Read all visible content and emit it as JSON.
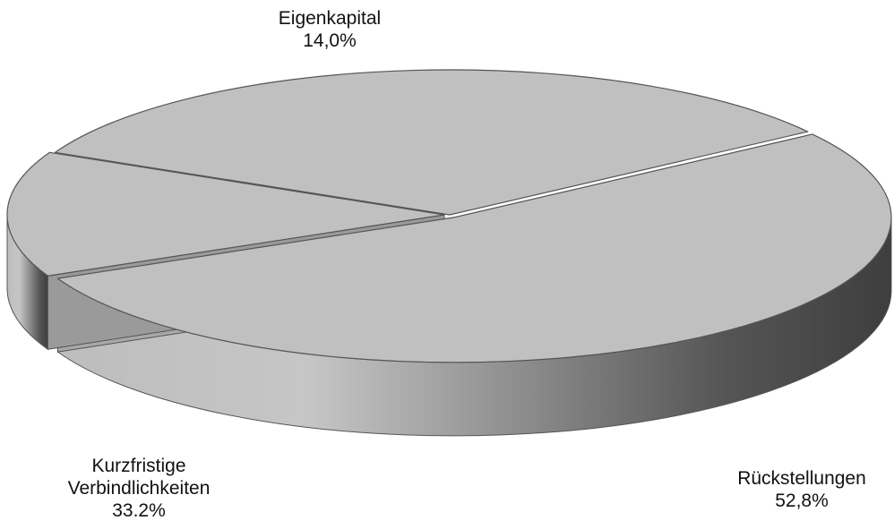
{
  "chart_data": {
    "type": "pie",
    "style": "3d",
    "colors": {
      "top_face": "#c0c0c0",
      "outline": "#555555",
      "side_light": "#c8c8c8",
      "side_dark": "#444444",
      "gap": "#7a7a7a"
    },
    "slices": [
      {
        "label": "Eigenkapital",
        "label_lines": [
          "Eigenkapital"
        ],
        "value": 14.0,
        "value_text": "14,0%"
      },
      {
        "label": "Kurzfristige Verbindlichkeiten",
        "label_lines": [
          "Kurzfristige",
          "Verbindlichkeiten"
        ],
        "value": 33.2,
        "value_text": "33.2%"
      },
      {
        "label": "Rückstellungen",
        "label_lines": [
          "Rückstellungen"
        ],
        "value": 52.8,
        "value_text": "52,8%"
      }
    ]
  }
}
